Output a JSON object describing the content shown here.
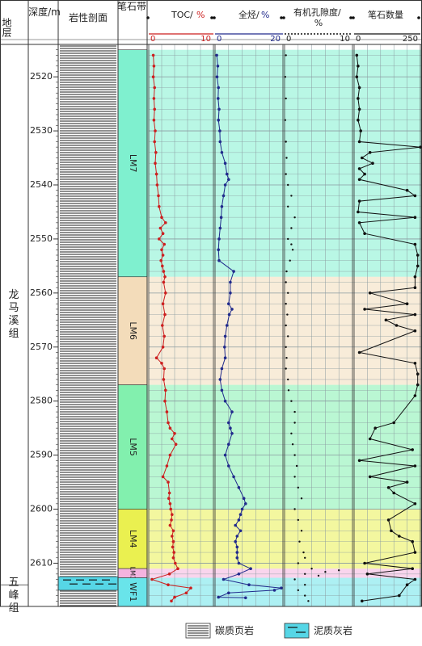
{
  "header": {
    "formation": "地层",
    "depth": "深度/m",
    "lithology": "岩性剖面",
    "zone": "笔石带",
    "toc_title": "TOC/",
    "toc_unit": "%",
    "hc_title": "全烃/",
    "hc_unit": "%",
    "por_title": "有机孔隙度/",
    "por_unit": "%",
    "grap_title": "笔石数量"
  },
  "formations": [
    {
      "name": "龙马溪组",
      "from": 2514,
      "to": 2614
    },
    {
      "name": "五峰组",
      "from": 2614,
      "to": 2622
    }
  ],
  "zones": [
    {
      "name": "LM7",
      "from": 2515,
      "to": 2557,
      "color": "#7ff0cf"
    },
    {
      "name": "LM6",
      "from": 2557,
      "to": 2577,
      "color": "#f3dcba"
    },
    {
      "name": "LM5",
      "from": 2577,
      "to": 2600,
      "color": "#82f0ae"
    },
    {
      "name": "LM4",
      "from": 2600,
      "to": 2611,
      "color": "#eaf050"
    },
    {
      "name": "LM3",
      "from": 2611,
      "to": 2612.7,
      "color": "#f4b3df"
    },
    {
      "name": "WF1",
      "from": 2612.7,
      "to": 2618,
      "color": "#69e4ea"
    }
  ],
  "legend": {
    "shale": "碳质页岩",
    "limestone": "泥质灰岩"
  },
  "chart_data": {
    "type": "line",
    "y_axis": {
      "label": "深度/m",
      "range": [
        2514,
        2618
      ],
      "ticks": [
        2520,
        2530,
        2540,
        2550,
        2560,
        2570,
        2580,
        2590,
        2600,
        2610
      ]
    },
    "series": [
      {
        "name": "TOC/%",
        "color": "#cc1f1f",
        "range": [
          0,
          10
        ],
        "tick_labels": [
          "0",
          "10"
        ],
        "points": [
          [
            0.7,
            2516
          ],
          [
            0.8,
            2518
          ],
          [
            0.7,
            2520
          ],
          [
            0.9,
            2522
          ],
          [
            0.8,
            2524
          ],
          [
            0.9,
            2526
          ],
          [
            0.8,
            2528
          ],
          [
            1.0,
            2530
          ],
          [
            0.9,
            2532
          ],
          [
            1.1,
            2534
          ],
          [
            1.0,
            2536
          ],
          [
            1.2,
            2538
          ],
          [
            1.3,
            2540
          ],
          [
            1.5,
            2542
          ],
          [
            1.6,
            2544
          ],
          [
            2.0,
            2546
          ],
          [
            2.6,
            2547
          ],
          [
            1.8,
            2548
          ],
          [
            2.2,
            2549
          ],
          [
            1.6,
            2550
          ],
          [
            2.4,
            2551
          ],
          [
            2.0,
            2552
          ],
          [
            2.2,
            2553
          ],
          [
            1.9,
            2554
          ],
          [
            2.1,
            2555
          ],
          [
            2.3,
            2556
          ],
          [
            2.5,
            2557
          ],
          [
            2.3,
            2558
          ],
          [
            2.6,
            2560
          ],
          [
            2.2,
            2562
          ],
          [
            2.5,
            2564
          ],
          [
            2.1,
            2566
          ],
          [
            2.4,
            2568
          ],
          [
            2.2,
            2570
          ],
          [
            1.2,
            2572
          ],
          [
            2.0,
            2573
          ],
          [
            2.4,
            2574
          ],
          [
            2.3,
            2576
          ],
          [
            2.6,
            2578
          ],
          [
            2.5,
            2580
          ],
          [
            2.8,
            2582
          ],
          [
            3.0,
            2584
          ],
          [
            3.3,
            2585
          ],
          [
            4.0,
            2586
          ],
          [
            3.6,
            2587
          ],
          [
            4.2,
            2588
          ],
          [
            3.3,
            2590
          ],
          [
            2.8,
            2592
          ],
          [
            2.2,
            2594
          ],
          [
            3.0,
            2595
          ],
          [
            3.2,
            2597
          ],
          [
            3.1,
            2598
          ],
          [
            3.3,
            2599
          ],
          [
            3.4,
            2600
          ],
          [
            3.6,
            2601
          ],
          [
            3.5,
            2602
          ],
          [
            3.3,
            2603
          ],
          [
            3.8,
            2604
          ],
          [
            3.6,
            2605
          ],
          [
            3.8,
            2606
          ],
          [
            3.7,
            2607
          ],
          [
            3.9,
            2608
          ],
          [
            3.8,
            2609
          ],
          [
            4.1,
            2610
          ],
          [
            4.5,
            2611
          ],
          [
            3.2,
            2612
          ],
          [
            0.5,
            2613
          ],
          [
            3.0,
            2614
          ],
          [
            6.5,
            2614.6
          ],
          [
            5.8,
            2615.5
          ],
          [
            4.0,
            2616.3
          ],
          [
            3.5,
            2617
          ]
        ]
      },
      {
        "name": "全烃/%",
        "color": "#202a8c",
        "range": [
          0,
          20
        ],
        "tick_labels": [
          "0",
          "20"
        ],
        "points": [
          [
            0.5,
            2516
          ],
          [
            0.8,
            2518
          ],
          [
            0.6,
            2520
          ],
          [
            1.0,
            2522
          ],
          [
            0.9,
            2524
          ],
          [
            1.2,
            2526
          ],
          [
            1.0,
            2528
          ],
          [
            1.4,
            2530
          ],
          [
            1.5,
            2532
          ],
          [
            2.0,
            2534
          ],
          [
            3.0,
            2536
          ],
          [
            3.5,
            2538
          ],
          [
            4.0,
            2539
          ],
          [
            3.0,
            2540
          ],
          [
            2.5,
            2542
          ],
          [
            2.0,
            2544
          ],
          [
            1.8,
            2546
          ],
          [
            1.5,
            2548
          ],
          [
            1.2,
            2550
          ],
          [
            1.0,
            2552
          ],
          [
            1.2,
            2554
          ],
          [
            5.5,
            2556
          ],
          [
            4.5,
            2558
          ],
          [
            4.5,
            2560
          ],
          [
            4.0,
            2562
          ],
          [
            5.0,
            2563
          ],
          [
            4.2,
            2564
          ],
          [
            3.5,
            2566
          ],
          [
            3.0,
            2568
          ],
          [
            2.8,
            2570
          ],
          [
            3.0,
            2572
          ],
          [
            2.0,
            2574
          ],
          [
            1.5,
            2576
          ],
          [
            2.0,
            2578
          ],
          [
            3.0,
            2580
          ],
          [
            5.0,
            2582
          ],
          [
            4.0,
            2584
          ],
          [
            4.5,
            2585
          ],
          [
            5.0,
            2586
          ],
          [
            4.0,
            2588
          ],
          [
            3.0,
            2590
          ],
          [
            4.0,
            2592
          ],
          [
            5.5,
            2594
          ],
          [
            7.0,
            2596
          ],
          [
            8.5,
            2598
          ],
          [
            9.0,
            2599
          ],
          [
            8.0,
            2600
          ],
          [
            7.5,
            2601
          ],
          [
            7.0,
            2602
          ],
          [
            6.0,
            2603
          ],
          [
            7.5,
            2604
          ],
          [
            6.5,
            2605
          ],
          [
            6.0,
            2606
          ],
          [
            6.5,
            2607
          ],
          [
            6.5,
            2608
          ],
          [
            6.5,
            2609
          ],
          [
            7.0,
            2610
          ],
          [
            10.5,
            2611
          ],
          [
            7.0,
            2612
          ],
          [
            2.5,
            2613
          ],
          [
            10.0,
            2614
          ],
          [
            19.5,
            2614.6
          ],
          [
            17.5,
            2615
          ],
          [
            4.0,
            2615.5
          ],
          [
            1.0,
            2616.3
          ],
          [
            9.0,
            2616.4
          ]
        ]
      },
      {
        "name": "有机孔隙度/%",
        "color": "#111111",
        "range": [
          0,
          10
        ],
        "tick_labels": [
          "0",
          "10"
        ],
        "points": [
          [
            0.2,
            2516
          ],
          [
            0.1,
            2520
          ],
          [
            0.2,
            2524
          ],
          [
            0.1,
            2528
          ],
          [
            0.2,
            2532
          ],
          [
            0.3,
            2535
          ],
          [
            0.2,
            2538
          ],
          [
            0.5,
            2540
          ],
          [
            1.0,
            2542
          ],
          [
            0.5,
            2544
          ],
          [
            1.5,
            2546
          ],
          [
            1.0,
            2548
          ],
          [
            0.5,
            2550
          ],
          [
            1.0,
            2551
          ],
          [
            1.2,
            2552
          ],
          [
            0.8,
            2554
          ],
          [
            0.3,
            2556
          ],
          [
            0.2,
            2558
          ],
          [
            0.5,
            2560
          ],
          [
            0.2,
            2562
          ],
          [
            0.4,
            2564
          ],
          [
            0.2,
            2566
          ],
          [
            0.5,
            2568
          ],
          [
            0.2,
            2570
          ],
          [
            0.3,
            2572
          ],
          [
            0.2,
            2574
          ],
          [
            0.5,
            2576
          ],
          [
            0.6,
            2578
          ],
          [
            1.0,
            2580
          ],
          [
            1.5,
            2582
          ],
          [
            1.5,
            2584
          ],
          [
            1.0,
            2586
          ],
          [
            1.2,
            2588
          ],
          [
            1.5,
            2590
          ],
          [
            1.8,
            2592
          ],
          [
            1.5,
            2594
          ],
          [
            2.0,
            2596
          ],
          [
            2.5,
            2598
          ],
          [
            1.5,
            2600
          ],
          [
            2.0,
            2602
          ],
          [
            2.5,
            2604
          ],
          [
            2.2,
            2606
          ],
          [
            2.8,
            2608
          ],
          [
            3.0,
            2609
          ],
          [
            2.0,
            2610
          ],
          [
            4.0,
            2611
          ],
          [
            8.0,
            2611.3
          ],
          [
            6.0,
            2611.6
          ],
          [
            3.0,
            2612
          ],
          [
            5.0,
            2612.3
          ],
          [
            1.5,
            2613
          ],
          [
            3.0,
            2614
          ],
          [
            2.0,
            2615
          ],
          [
            3.0,
            2616
          ],
          [
            3.5,
            2617
          ]
        ]
      },
      {
        "name": "笔石数量",
        "color": "#111111",
        "range": [
          0,
          250
        ],
        "tick_labels": [
          "0",
          "250"
        ],
        "points": [
          [
            10,
            2516
          ],
          [
            15,
            2518
          ],
          [
            10,
            2520
          ],
          [
            20,
            2522
          ],
          [
            15,
            2524
          ],
          [
            20,
            2526
          ],
          [
            15,
            2528
          ],
          [
            25,
            2530
          ],
          [
            20,
            2532
          ],
          [
            250,
            2533
          ],
          [
            60,
            2534
          ],
          [
            30,
            2535
          ],
          [
            70,
            2536
          ],
          [
            20,
            2537
          ],
          [
            40,
            2538
          ],
          [
            20,
            2539
          ],
          [
            200,
            2541
          ],
          [
            230,
            2542
          ],
          [
            20,
            2543
          ],
          [
            15,
            2545
          ],
          [
            230,
            2546
          ],
          [
            20,
            2547
          ],
          [
            40,
            2549
          ],
          [
            230,
            2551
          ],
          [
            240,
            2553
          ],
          [
            240,
            2555
          ],
          [
            230,
            2557
          ],
          [
            230,
            2559
          ],
          [
            60,
            2560
          ],
          [
            200,
            2562
          ],
          [
            40,
            2563
          ],
          [
            230,
            2564
          ],
          [
            120,
            2565
          ],
          [
            160,
            2566
          ],
          [
            230,
            2567
          ],
          [
            20,
            2571
          ],
          [
            230,
            2573
          ],
          [
            240,
            2575
          ],
          [
            240,
            2577
          ],
          [
            230,
            2579
          ],
          [
            150,
            2584
          ],
          [
            80,
            2585
          ],
          [
            60,
            2587
          ],
          [
            220,
            2589
          ],
          [
            20,
            2591
          ],
          [
            230,
            2592
          ],
          [
            60,
            2594
          ],
          [
            200,
            2595
          ],
          [
            130,
            2596
          ],
          [
            150,
            2597
          ],
          [
            230,
            2599
          ],
          [
            130,
            2602
          ],
          [
            140,
            2604
          ],
          [
            170,
            2605
          ],
          [
            220,
            2606
          ],
          [
            230,
            2608
          ],
          [
            40,
            2610
          ],
          [
            220,
            2611
          ],
          [
            50,
            2612
          ],
          [
            230,
            2613
          ],
          [
            200,
            2614
          ],
          [
            170,
            2616
          ],
          [
            30,
            2617
          ]
        ]
      }
    ]
  }
}
